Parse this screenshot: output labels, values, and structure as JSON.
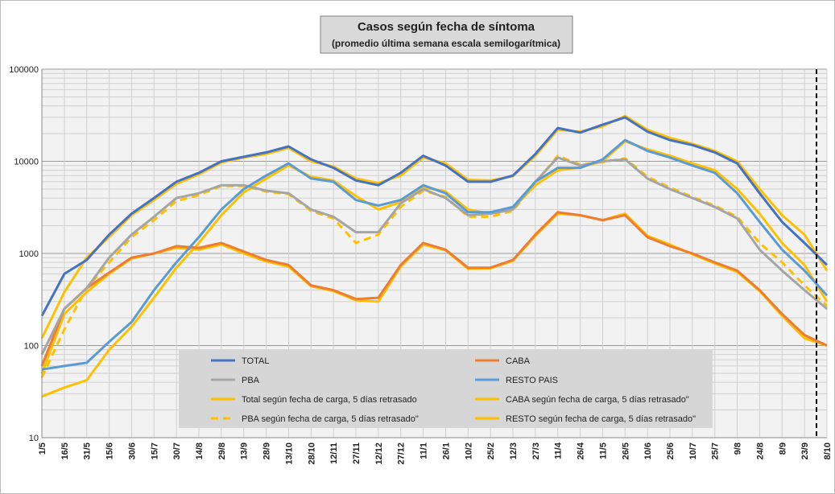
{
  "chart_data": {
    "type": "line",
    "title": "Casos según fecha de síntoma",
    "subtitle": "(promedio última semana escala semilogarítmica)",
    "log_scale": true,
    "grid": true,
    "categories": [
      "1/5",
      "16/5",
      "31/5",
      "15/6",
      "30/6",
      "15/7",
      "30/7",
      "14/8",
      "29/8",
      "13/9",
      "28/9",
      "13/10",
      "28/10",
      "12/11",
      "27/11",
      "12/12",
      "27/12",
      "11/1",
      "26/1",
      "10/2",
      "25/2",
      "12/3",
      "27/3",
      "11/4",
      "26/4",
      "11/5",
      "26/5",
      "10/6",
      "25/6",
      "10/7",
      "25/7",
      "9/8",
      "24/8",
      "8/9",
      "23/9",
      "8/10"
    ],
    "ylim": [
      10,
      100000
    ],
    "yticks": [
      10,
      100,
      1000,
      10000,
      100000
    ],
    "series": [
      {
        "name": "TOTAL",
        "color": "#4472c4",
        "dashed": false,
        "values": [
          210,
          600,
          850,
          1600,
          2700,
          4000,
          6000,
          7500,
          10000,
          11200,
          12500,
          14500,
          10500,
          8500,
          6200,
          5500,
          7500,
          11500,
          9000,
          6000,
          6000,
          7000,
          12000,
          23000,
          20500,
          25000,
          30000,
          21000,
          17000,
          15000,
          12500,
          9500,
          4500,
          2200,
          1300,
          750
        ]
      },
      {
        "name": "CABA",
        "color": "#ed7d31",
        "dashed": false,
        "values": [
          60,
          250,
          420,
          620,
          900,
          1000,
          1200,
          1150,
          1300,
          1050,
          850,
          750,
          450,
          400,
          320,
          330,
          750,
          1300,
          1100,
          700,
          700,
          850,
          1600,
          2800,
          2600,
          2300,
          2600,
          1500,
          1200,
          1000,
          800,
          650,
          400,
          220,
          130,
          100
        ]
      },
      {
        "name": "PBA",
        "color": "#a5a5a5",
        "dashed": false,
        "values": [
          80,
          250,
          420,
          900,
          1600,
          2500,
          4000,
          4500,
          5500,
          5500,
          4800,
          4500,
          3000,
          2500,
          1700,
          1700,
          3500,
          5000,
          4000,
          2600,
          2700,
          3000,
          6000,
          11000,
          9000,
          10000,
          10500,
          6500,
          5000,
          4000,
          3200,
          2400,
          1100,
          650,
          400,
          250
        ]
      },
      {
        "name": "RESTO PAIS",
        "color": "#5b9bd5",
        "dashed": false,
        "values": [
          55,
          60,
          65,
          110,
          180,
          400,
          800,
          1500,
          3000,
          5000,
          7000,
          9500,
          6500,
          6000,
          3800,
          3300,
          3800,
          5500,
          4500,
          2800,
          2800,
          3200,
          6000,
          8500,
          8500,
          10500,
          17000,
          13000,
          11000,
          9000,
          7500,
          4500,
          2200,
          1100,
          650,
          350
        ]
      },
      {
        "name": "Total según fecha de carga, 5 días retrasado",
        "color": "#ffc000",
        "dashed": false,
        "values": [
          120,
          380,
          900,
          1500,
          2600,
          3800,
          5700,
          7200,
          9700,
          11000,
          12000,
          14000,
          10000,
          8800,
          6500,
          5800,
          7000,
          11000,
          9500,
          6300,
          6200,
          6900,
          11500,
          22000,
          21000,
          24000,
          31000,
          22000,
          18000,
          15500,
          13000,
          10000,
          5000,
          2600,
          1600,
          650
        ]
      },
      {
        "name": "CABA según fecha de carga, 5 días retrasado\"",
        "color": "#ffc000",
        "dashed": false,
        "values": [
          50,
          220,
          380,
          600,
          880,
          1000,
          1150,
          1100,
          1250,
          1000,
          820,
          720,
          440,
          390,
          310,
          300,
          720,
          1250,
          1080,
          680,
          690,
          830,
          1550,
          2700,
          2600,
          2300,
          2700,
          1550,
          1250,
          980,
          780,
          630,
          390,
          210,
          120,
          100
        ]
      },
      {
        "name": "PBA según fecha de carga, 5 días retrasado\"",
        "color": "#ffc000",
        "dashed": true,
        "values": [
          45,
          150,
          420,
          800,
          1500,
          2300,
          3700,
          4300,
          5400,
          5400,
          4700,
          4400,
          2900,
          2400,
          1300,
          1600,
          3200,
          4800,
          4100,
          2500,
          2500,
          2900,
          5800,
          11500,
          9200,
          9800,
          10800,
          6800,
          5200,
          4100,
          3300,
          2500,
          1300,
          800,
          450,
          270
        ]
      },
      {
        "name": "RESTO según fecha de carga, 5 días retrasado\"",
        "color": "#ffc000",
        "dashed": false,
        "values": [
          28,
          35,
          42,
          90,
          160,
          330,
          700,
          1300,
          2600,
          4600,
          6500,
          9000,
          6800,
          6200,
          4200,
          3000,
          3600,
          5200,
          4700,
          3000,
          2700,
          3100,
          5500,
          8000,
          8600,
          10000,
          16500,
          13500,
          11500,
          9500,
          8000,
          5000,
          2700,
          1300,
          750,
          300
        ]
      }
    ]
  }
}
